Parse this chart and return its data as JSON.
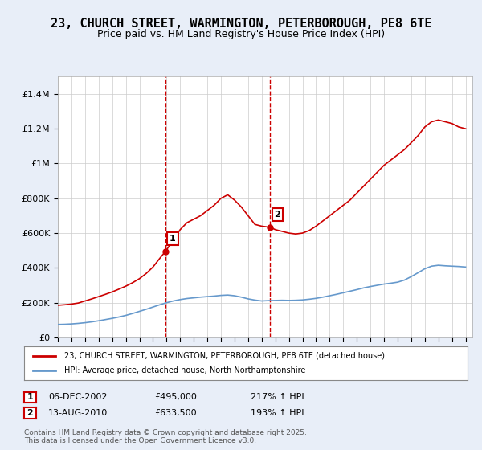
{
  "title": "23, CHURCH STREET, WARMINGTON, PETERBOROUGH, PE8 6TE",
  "subtitle": "Price paid vs. HM Land Registry's House Price Index (HPI)",
  "title_fontsize": 11,
  "subtitle_fontsize": 9,
  "ylabel": "",
  "ylim": [
    0,
    1500000
  ],
  "yticks": [
    0,
    200000,
    400000,
    600000,
    800000,
    1000000,
    1200000,
    1400000
  ],
  "ytick_labels": [
    "£0",
    "£200K",
    "£400K",
    "£600K",
    "£800K",
    "£1M",
    "£1.2M",
    "£1.4M"
  ],
  "xlim_start": 1995.0,
  "xlim_end": 2025.5,
  "line_color_red": "#cc0000",
  "line_color_blue": "#6699cc",
  "background_color": "#e8eef8",
  "plot_bg_color": "#ffffff",
  "grid_color": "#cccccc",
  "marker1_x": 2002.92,
  "marker2_x": 2010.62,
  "marker1_y": 495000,
  "marker2_y": 633500,
  "marker1_label": "1",
  "marker2_label": "2",
  "legend_line1": "23, CHURCH STREET, WARMINGTON, PETERBOROUGH, PE8 6TE (detached house)",
  "legend_line2": "HPI: Average price, detached house, North Northamptonshire",
  "table_row1": [
    "1",
    "06-DEC-2002",
    "£495,000",
    "217% ↑ HPI"
  ],
  "table_row2": [
    "2",
    "13-AUG-2010",
    "£633,500",
    "193% ↑ HPI"
  ],
  "footnote": "Contains HM Land Registry data © Crown copyright and database right 2025.\nThis data is licensed under the Open Government Licence v3.0.",
  "red_x": [
    1995.0,
    1995.5,
    1996.0,
    1996.5,
    1997.0,
    1997.5,
    1998.0,
    1998.5,
    1999.0,
    1999.5,
    2000.0,
    2000.5,
    2001.0,
    2001.5,
    2002.0,
    2002.5,
    2002.92,
    2003.5,
    2004.0,
    2004.5,
    2005.0,
    2005.5,
    2006.0,
    2006.5,
    2007.0,
    2007.5,
    2008.0,
    2008.5,
    2009.0,
    2009.5,
    2010.0,
    2010.62,
    2011.0,
    2011.5,
    2012.0,
    2012.5,
    2013.0,
    2013.5,
    2014.0,
    2014.5,
    2015.0,
    2015.5,
    2016.0,
    2016.5,
    2017.0,
    2017.5,
    2018.0,
    2018.5,
    2019.0,
    2019.5,
    2020.0,
    2020.5,
    2021.0,
    2021.5,
    2022.0,
    2022.5,
    2023.0,
    2023.5,
    2024.0,
    2024.5,
    2025.0
  ],
  "red_y": [
    185000,
    188000,
    192000,
    198000,
    210000,
    222000,
    235000,
    248000,
    262000,
    278000,
    295000,
    315000,
    338000,
    368000,
    405000,
    455000,
    495000,
    560000,
    620000,
    660000,
    680000,
    700000,
    730000,
    760000,
    800000,
    820000,
    790000,
    750000,
    700000,
    650000,
    640000,
    633500,
    620000,
    610000,
    600000,
    595000,
    600000,
    615000,
    640000,
    670000,
    700000,
    730000,
    760000,
    790000,
    830000,
    870000,
    910000,
    950000,
    990000,
    1020000,
    1050000,
    1080000,
    1120000,
    1160000,
    1210000,
    1240000,
    1250000,
    1240000,
    1230000,
    1210000,
    1200000
  ],
  "blue_x": [
    1995.0,
    1995.5,
    1996.0,
    1996.5,
    1997.0,
    1997.5,
    1998.0,
    1998.5,
    1999.0,
    1999.5,
    2000.0,
    2000.5,
    2001.0,
    2001.5,
    2002.0,
    2002.5,
    2003.0,
    2003.5,
    2004.0,
    2004.5,
    2005.0,
    2005.5,
    2006.0,
    2006.5,
    2007.0,
    2007.5,
    2008.0,
    2008.5,
    2009.0,
    2009.5,
    2010.0,
    2010.5,
    2011.0,
    2011.5,
    2012.0,
    2012.5,
    2013.0,
    2013.5,
    2014.0,
    2014.5,
    2015.0,
    2015.5,
    2016.0,
    2016.5,
    2017.0,
    2017.5,
    2018.0,
    2018.5,
    2019.0,
    2019.5,
    2020.0,
    2020.5,
    2021.0,
    2021.5,
    2022.0,
    2022.5,
    2023.0,
    2023.5,
    2024.0,
    2024.5,
    2025.0
  ],
  "blue_y": [
    75000,
    76000,
    78000,
    81000,
    85000,
    90000,
    96000,
    103000,
    110000,
    118000,
    127000,
    138000,
    150000,
    162000,
    175000,
    188000,
    200000,
    210000,
    218000,
    224000,
    228000,
    232000,
    235000,
    238000,
    242000,
    244000,
    240000,
    232000,
    222000,
    215000,
    210000,
    212000,
    213000,
    214000,
    213000,
    214000,
    216000,
    220000,
    225000,
    232000,
    240000,
    248000,
    257000,
    266000,
    275000,
    285000,
    293000,
    300000,
    307000,
    312000,
    318000,
    330000,
    350000,
    372000,
    395000,
    410000,
    415000,
    412000,
    410000,
    408000,
    405000
  ]
}
